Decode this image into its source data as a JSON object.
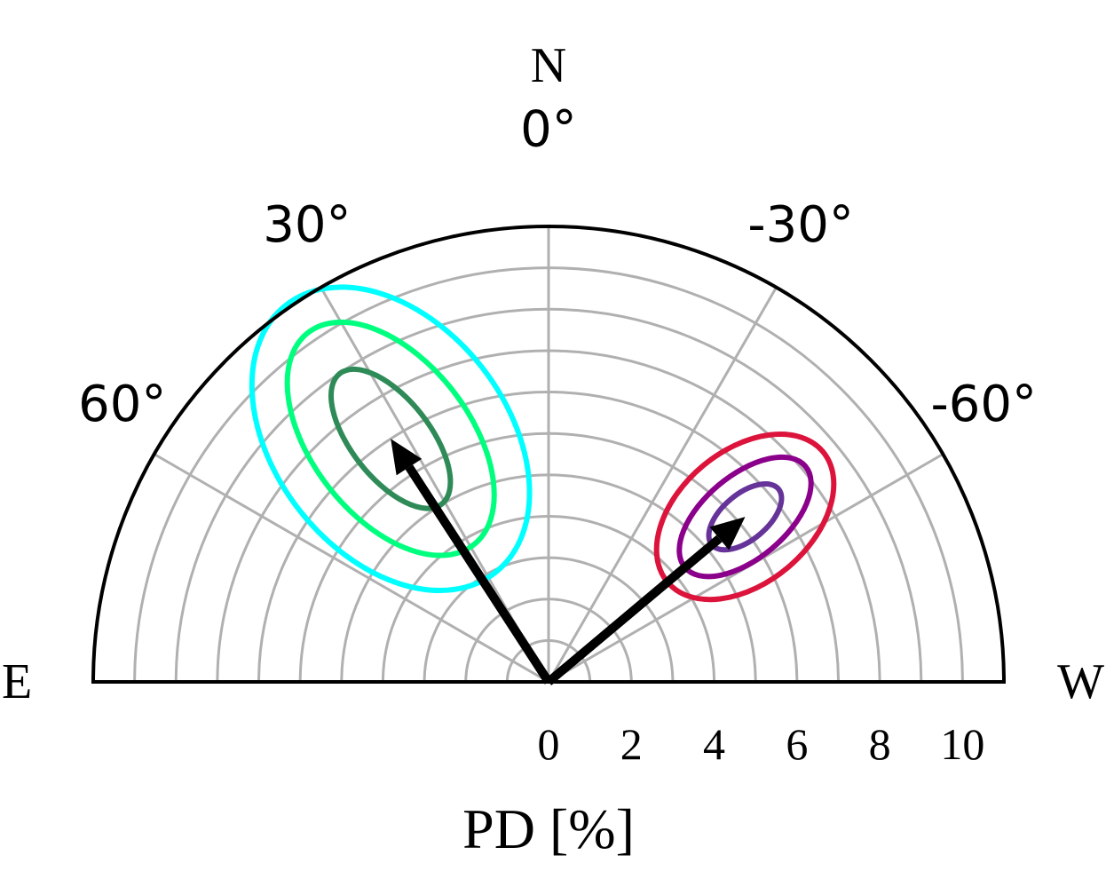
{
  "chart_data": {
    "type": "polar",
    "coordinate_system": "half-polar (position angle)",
    "compass_labels": {
      "north": "N",
      "east": "E",
      "west": "W"
    },
    "angle_ticks": [
      {
        "angle": 0,
        "label": "0°"
      },
      {
        "angle": 30,
        "label": "30°"
      },
      {
        "angle": -30,
        "label": "-30°"
      },
      {
        "angle": 60,
        "label": "60°"
      },
      {
        "angle": -60,
        "label": "-60°"
      }
    ],
    "radial_axis": {
      "label": "PD [%]",
      "range": [
        0,
        11
      ],
      "ticks": [
        0,
        2,
        4,
        6,
        8,
        10
      ],
      "tick_labels": [
        "0",
        "2",
        "4",
        "6",
        "8",
        "10"
      ]
    },
    "grid": true,
    "arrows": [
      {
        "pa_deg": 33,
        "pd": 7.0
      },
      {
        "pa_deg": -50,
        "pd": 6.2
      }
    ],
    "contour_sets": [
      {
        "colors": [
          "#2e8b57",
          "#00ff7f",
          "#00ffff"
        ],
        "center": {
          "pa_deg": 33,
          "pd": 7.0
        },
        "levels": [
          {
            "a": 2.0,
            "b": 0.95
          },
          {
            "a": 3.25,
            "b": 1.9
          },
          {
            "a": 4.1,
            "b": 2.8
          }
        ],
        "major_axis_pa_deg": 38
      },
      {
        "colors": [
          "#663399",
          "#8b008b",
          "#dc143c"
        ],
        "center": {
          "pa_deg": -50,
          "pd": 6.2
        },
        "levels": [
          {
            "a": 1.05,
            "b": 0.55
          },
          {
            "a": 1.9,
            "b": 1.0
          },
          {
            "a": 2.45,
            "b": 1.6
          }
        ],
        "major_axis_pa_deg": -50
      }
    ]
  }
}
